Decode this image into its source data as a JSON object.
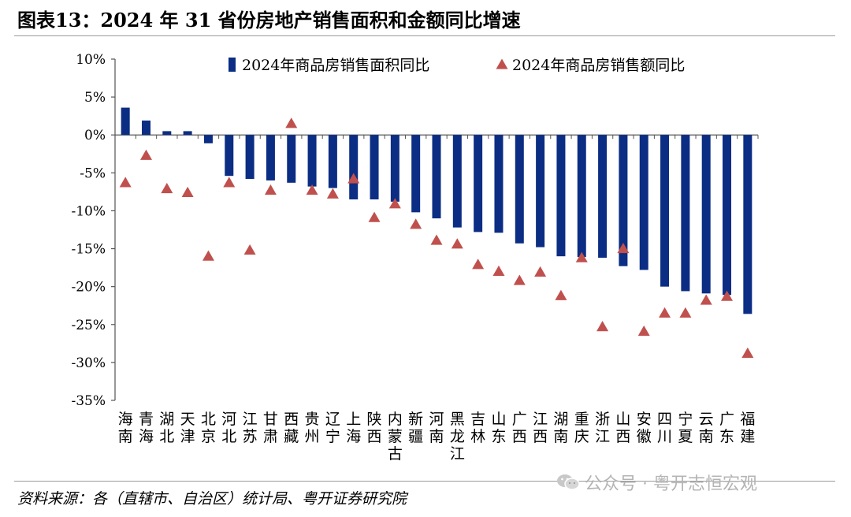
{
  "header": {
    "title": "图表13：2024 年 31 省份房地产销售面积和金额同比增速"
  },
  "footer": {
    "source": "资料来源：各（直辖市、自治区）统计局、粤开证券研究院",
    "watermark": "公众号 · 粤开志恒宏观"
  },
  "colors": {
    "bar": "#0b2d83",
    "marker": "#c0504d",
    "axis": "#555555"
  },
  "chart_data": {
    "type": "bar",
    "title": "",
    "xlabel": "",
    "ylabel": "",
    "ylim": [
      -35,
      10
    ],
    "yticks": [
      10,
      5,
      0,
      -5,
      -10,
      -15,
      -20,
      -25,
      -30,
      -35
    ],
    "ytick_labels": [
      "10%",
      "5%",
      "0%",
      "-5%",
      "-10%",
      "-15%",
      "-20%",
      "-25%",
      "-30%",
      "-35%"
    ],
    "legend_position": "top",
    "categories": [
      "海南",
      "青海",
      "湖北",
      "天津",
      "北京",
      "河北",
      "江苏",
      "甘肃",
      "西藏",
      "贵州",
      "辽宁",
      "上海",
      "陕西",
      "内蒙古",
      "新疆",
      "河南",
      "黑龙江",
      "吉林",
      "山东",
      "广西",
      "江西",
      "湖南",
      "重庆",
      "浙江",
      "山西",
      "安徽",
      "四川",
      "宁夏",
      "云南",
      "广东",
      "福建"
    ],
    "series": [
      {
        "name": "2024年商品房销售面积同比",
        "kind": "bar",
        "values": [
          3.6,
          1.9,
          0.5,
          0.5,
          -1.1,
          -5.4,
          -5.8,
          -6.0,
          -6.3,
          -6.8,
          -7.0,
          -8.5,
          -8.5,
          -8.8,
          -10.2,
          -11.0,
          -12.2,
          -12.8,
          -12.9,
          -14.3,
          -14.8,
          -16.0,
          -16.1,
          -16.2,
          -17.3,
          -17.8,
          -20.0,
          -20.6,
          -20.9,
          -21.1,
          -23.6
        ]
      },
      {
        "name": "2024年商品房销售额同比",
        "kind": "marker",
        "values": [
          -6.3,
          -2.7,
          -7.1,
          -7.6,
          -16.0,
          -6.3,
          -15.2,
          -7.3,
          1.5,
          -7.3,
          -7.8,
          -5.8,
          -10.9,
          -9.1,
          -11.8,
          -13.9,
          -14.4,
          -17.1,
          -18.0,
          -19.2,
          -18.1,
          -21.2,
          -16.2,
          -25.3,
          -15.0,
          -25.9,
          -23.5,
          -23.5,
          -21.8,
          -21.3,
          -28.8
        ]
      }
    ]
  }
}
